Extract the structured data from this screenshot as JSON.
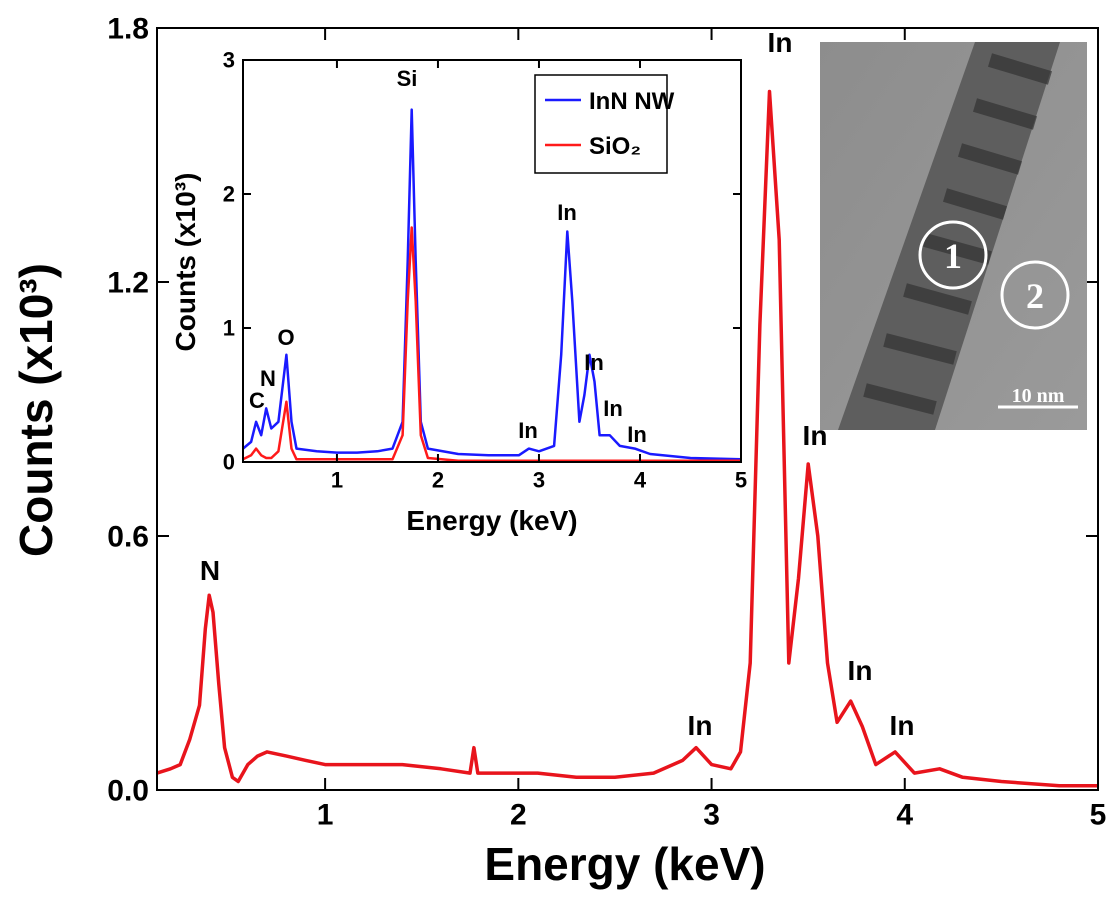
{
  "chart_data": [
    {
      "type": "line",
      "xlabel": "Energy (keV)",
      "ylabel": "Counts (x10³)",
      "xlim": [
        0.13,
        5
      ],
      "ylim": [
        0,
        1.8
      ],
      "xticks": [
        1,
        2,
        3,
        4,
        5
      ],
      "yticks": [
        {
          "value": 0,
          "label": "0.0"
        },
        0.6,
        1.2,
        1.8
      ],
      "x": [
        0.13,
        0.2,
        0.25,
        0.3,
        0.35,
        0.38,
        0.4,
        0.42,
        0.45,
        0.48,
        0.52,
        0.55,
        0.6,
        0.65,
        0.7,
        0.8,
        0.9,
        1.0,
        1.2,
        1.4,
        1.6,
        1.75,
        1.77,
        1.79,
        1.9,
        2.1,
        2.3,
        2.5,
        2.7,
        2.85,
        2.92,
        3.0,
        3.1,
        3.15,
        3.2,
        3.25,
        3.3,
        3.35,
        3.4,
        3.45,
        3.5,
        3.55,
        3.6,
        3.65,
        3.72,
        3.78,
        3.85,
        3.95,
        4.05,
        4.18,
        4.3,
        4.5,
        4.8,
        5.0
      ],
      "series": [
        {
          "color": "#e8141c",
          "values": [
            0.04,
            0.05,
            0.06,
            0.12,
            0.2,
            0.38,
            0.46,
            0.42,
            0.25,
            0.1,
            0.03,
            0.02,
            0.06,
            0.08,
            0.09,
            0.08,
            0.07,
            0.06,
            0.06,
            0.06,
            0.05,
            0.04,
            0.1,
            0.04,
            0.04,
            0.04,
            0.03,
            0.03,
            0.04,
            0.07,
            0.1,
            0.06,
            0.05,
            0.09,
            0.3,
            1.1,
            1.65,
            1.3,
            0.3,
            0.5,
            0.77,
            0.6,
            0.3,
            0.16,
            0.21,
            0.15,
            0.06,
            0.09,
            0.04,
            0.05,
            0.03,
            0.02,
            0.01,
            0.01
          ]
        }
      ],
      "annotations": [
        "N",
        "In",
        "In",
        "In",
        "In",
        "In"
      ]
    },
    {
      "type": "line",
      "xlabel": "Energy (keV)",
      "ylabel": "Counts (x10³)",
      "xlim": [
        0.07,
        5
      ],
      "ylim": [
        0,
        3
      ],
      "xticks": [
        1,
        2,
        3,
        4,
        5
      ],
      "yticks": [
        0,
        1,
        2,
        3
      ],
      "x": [
        0.07,
        0.15,
        0.2,
        0.25,
        0.3,
        0.35,
        0.42,
        0.5,
        0.55,
        0.6,
        0.8,
        1.0,
        1.2,
        1.4,
        1.55,
        1.65,
        1.7,
        1.74,
        1.78,
        1.83,
        1.9,
        2.2,
        2.5,
        2.8,
        2.9,
        3.0,
        3.15,
        3.22,
        3.28,
        3.33,
        3.4,
        3.45,
        3.5,
        3.55,
        3.6,
        3.7,
        3.8,
        3.95,
        4.1,
        4.5,
        5
      ],
      "series": [
        {
          "name": "InN NW",
          "color": "#1a1aff",
          "values": [
            0.1,
            0.15,
            0.3,
            0.2,
            0.4,
            0.25,
            0.3,
            0.8,
            0.3,
            0.1,
            0.08,
            0.07,
            0.07,
            0.08,
            0.1,
            0.3,
            1.5,
            2.63,
            1.5,
            0.3,
            0.1,
            0.06,
            0.05,
            0.05,
            0.1,
            0.08,
            0.12,
            0.8,
            1.72,
            1.2,
            0.3,
            0.5,
            0.8,
            0.6,
            0.2,
            0.2,
            0.12,
            0.1,
            0.06,
            0.03,
            0.02
          ]
        },
        {
          "name": "SiO₂",
          "color": "#ff1a1a",
          "values": [
            0.02,
            0.05,
            0.1,
            0.05,
            0.03,
            0.03,
            0.08,
            0.45,
            0.1,
            0.02,
            0.02,
            0.02,
            0.02,
            0.02,
            0.02,
            0.2,
            1.2,
            1.75,
            1.2,
            0.2,
            0.03,
            0.01,
            0.01,
            0.01,
            0.01,
            0.01,
            0.01,
            0.01,
            0.01,
            0.01,
            0.01,
            0.01,
            0.01,
            0.01,
            0.01,
            0.01,
            0.01,
            0.01,
            0.01,
            0.01,
            0.01
          ]
        }
      ],
      "annotations": [
        "C",
        "N",
        "O",
        "Si",
        "In",
        "In",
        "In",
        "In",
        "In"
      ]
    }
  ],
  "image": {
    "labels": [
      "1",
      "2"
    ],
    "scale_bar": "10 nm"
  }
}
